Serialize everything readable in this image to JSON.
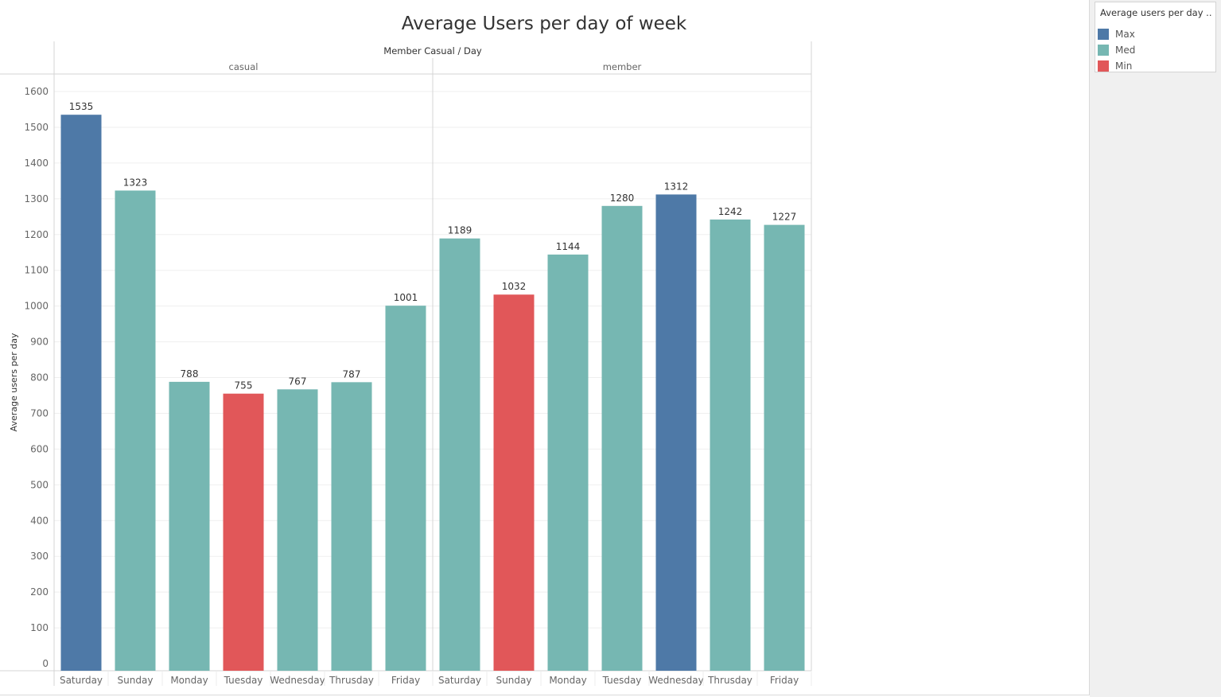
{
  "chart_data": {
    "type": "bar",
    "title": "Average Users per day of week",
    "header_title": "Member Casual  /  Day",
    "ylabel": "Average users per day",
    "xlabel": "",
    "ylim": [
      0,
      1600
    ],
    "yticks": [
      0,
      100,
      200,
      300,
      400,
      500,
      600,
      700,
      800,
      900,
      1000,
      1100,
      1200,
      1300,
      1400,
      1500,
      1600
    ],
    "grid": true,
    "legend": {
      "title": "Average users per day ...",
      "placement": "right",
      "items": [
        {
          "label": "Max",
          "color": "#4e79a7"
        },
        {
          "label": "Med",
          "color": "#76b7b2"
        },
        {
          "label": "Min",
          "color": "#e15759"
        }
      ]
    },
    "panels": [
      {
        "name": "casual",
        "categories": [
          "Saturday",
          "Sunday",
          "Monday",
          "Tuesday",
          "Wednesday",
          "Thrusday",
          "Friday"
        ],
        "values": [
          1535,
          1323,
          788,
          755,
          767,
          787,
          1001
        ],
        "levels": [
          "Max",
          "Med",
          "Med",
          "Min",
          "Med",
          "Med",
          "Med"
        ]
      },
      {
        "name": "member",
        "categories": [
          "Saturday",
          "Sunday",
          "Monday",
          "Tuesday",
          "Wednesday",
          "Thrusday",
          "Friday"
        ],
        "values": [
          1189,
          1032,
          1144,
          1280,
          1312,
          1242,
          1227
        ],
        "levels": [
          "Med",
          "Min",
          "Med",
          "Med",
          "Max",
          "Med",
          "Med"
        ]
      }
    ]
  }
}
